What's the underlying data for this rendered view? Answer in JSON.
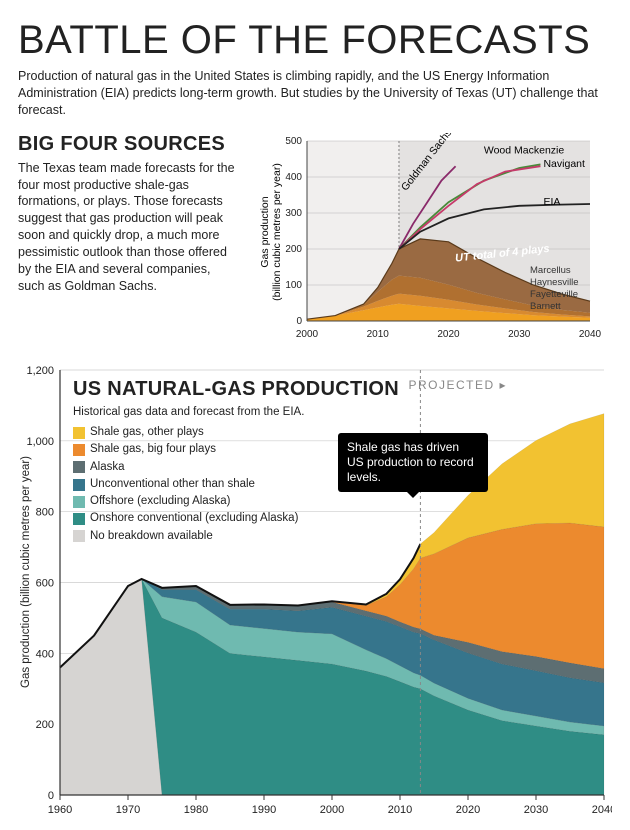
{
  "headline": "BATTLE OF THE FORECASTS",
  "intro": "Production of natural gas in the United States is climbing rapidly, and the US Energy Information Administration (EIA) predicts long-term growth. But studies by the University of Texas (UT) challenge that forecast.",
  "bigfour": {
    "title": "BIG FOUR SOURCES",
    "body": "The Texas team made forecasts for the four most productive shale-gas formations, or plays. Those forecasts suggest that gas production will peak soon and quickly drop, a much more pessimistic outlook than those offered by the EIA and several companies, such as Goldman Sachs."
  },
  "chart_small": {
    "type": "line+stacked-area",
    "ylabel": "Gas production\n(billion cubic metres per year)",
    "xlim": [
      2000,
      2040
    ],
    "ylim": [
      0,
      500
    ],
    "ytick_step": 100,
    "xtick_step": 10,
    "bg": "#f1efee",
    "proj_bg": "#e4e2e1",
    "grid_color": "#b8b6b5",
    "axis_color": "#444444",
    "divider_year": 2013,
    "lines": {
      "goldman": {
        "label": "Goldman Sachs",
        "color": "#8a2a6a",
        "pts": [
          [
            2013,
            200
          ],
          [
            2015,
            270
          ],
          [
            2017,
            330
          ],
          [
            2019,
            390
          ],
          [
            2021,
            430
          ]
        ]
      },
      "wood": {
        "label": "Wood Mackenzie",
        "color": "#4a8a3a",
        "pts": [
          [
            2013,
            200
          ],
          [
            2016,
            260
          ],
          [
            2020,
            330
          ],
          [
            2025,
            390
          ],
          [
            2030,
            425
          ],
          [
            2033,
            435
          ]
        ]
      },
      "navigant": {
        "label": "Navigant",
        "color": "#c63a6a",
        "pts": [
          [
            2013,
            200
          ],
          [
            2016,
            255
          ],
          [
            2020,
            320
          ],
          [
            2024,
            380
          ],
          [
            2028,
            415
          ],
          [
            2033,
            430
          ]
        ]
      },
      "eia": {
        "label": "EIA",
        "color": "#222222",
        "pts": [
          [
            2013,
            200
          ],
          [
            2016,
            248
          ],
          [
            2020,
            285
          ],
          [
            2025,
            310
          ],
          [
            2030,
            320
          ],
          [
            2035,
            323
          ],
          [
            2040,
            325
          ]
        ]
      }
    },
    "stack_label": "UT total of 4 plays",
    "stack_names": [
      "Marcellus",
      "Haynesville",
      "Fayetteville",
      "Barnett"
    ],
    "stack_colors": [
      "#9a6a42",
      "#b07030",
      "#d88a30",
      "#f0a020"
    ],
    "years": [
      2000,
      2004,
      2008,
      2010,
      2012,
      2013,
      2016,
      2020,
      2024,
      2028,
      2032,
      2036,
      2040
    ],
    "barnett": [
      5,
      15,
      30,
      38,
      45,
      48,
      42,
      35,
      28,
      22,
      16,
      12,
      9
    ],
    "fayetteville": [
      0,
      0,
      10,
      18,
      25,
      28,
      28,
      24,
      18,
      13,
      9,
      6,
      4
    ],
    "haynesville": [
      0,
      0,
      5,
      25,
      45,
      50,
      50,
      42,
      32,
      25,
      18,
      13,
      10
    ],
    "marcellus": [
      0,
      0,
      2,
      12,
      45,
      74,
      108,
      119,
      97,
      75,
      57,
      44,
      32
    ]
  },
  "chart_big": {
    "type": "stacked-area",
    "title": "US NATURAL-GAS PRODUCTION",
    "subtitle": "Historical gas data and forecast from the EIA.",
    "projected_label": "PROJECTED",
    "ylabel": "Gas production (billion cubic metres per year)",
    "xlim": [
      1960,
      2040
    ],
    "ylim": [
      0,
      1200
    ],
    "ytick_step": 200,
    "xtick_step": 10,
    "bg": "#ffffff",
    "grid_color": "#cccccc",
    "axis_color": "#333333",
    "divider_year": 2013,
    "callout": "Shale gas has driven US production to record levels.",
    "legend": [
      {
        "label": "Shale gas, other plays",
        "color": "#f2c231"
      },
      {
        "label": "Shale gas, big four plays",
        "color": "#ec8a2e"
      },
      {
        "label": "Alaska",
        "color": "#5d6e72"
      },
      {
        "label": "Unconventional other than shale",
        "color": "#36758c"
      },
      {
        "label": "Offshore (excluding Alaska)",
        "color": "#6fbab0"
      },
      {
        "label": "Onshore conventional (excluding Alaska)",
        "color": "#2f8d85"
      },
      {
        "label": "No breakdown available",
        "color": "#d6d4d2"
      }
    ],
    "years": [
      1960,
      1965,
      1970,
      1972,
      1975,
      1980,
      1985,
      1990,
      1995,
      2000,
      2005,
      2008,
      2010,
      2012,
      2013,
      2015,
      2020,
      2025,
      2030,
      2035,
      2040
    ],
    "no_data": [
      360,
      450,
      590,
      610,
      0,
      0,
      0,
      0,
      0,
      0,
      0,
      0,
      0,
      0,
      0,
      0,
      0,
      0,
      0,
      0,
      0
    ],
    "onshore": [
      0,
      0,
      0,
      0,
      500,
      460,
      400,
      390,
      380,
      370,
      350,
      335,
      320,
      305,
      300,
      280,
      240,
      210,
      195,
      180,
      170
    ],
    "offshore": [
      0,
      0,
      0,
      0,
      60,
      85,
      80,
      80,
      80,
      85,
      60,
      50,
      45,
      40,
      38,
      36,
      33,
      30,
      28,
      26,
      25
    ],
    "unconv": [
      0,
      0,
      0,
      0,
      20,
      35,
      45,
      55,
      60,
      75,
      95,
      105,
      110,
      115,
      118,
      122,
      128,
      130,
      128,
      125,
      122
    ],
    "alaska": [
      0,
      0,
      0,
      0,
      5,
      10,
      12,
      13,
      15,
      15,
      15,
      15,
      14,
      14,
      13,
      13,
      30,
      35,
      40,
      42,
      40
    ],
    "big4": [
      0,
      0,
      0,
      0,
      0,
      0,
      0,
      0,
      0,
      2,
      15,
      55,
      105,
      165,
      200,
      230,
      295,
      345,
      375,
      395,
      400
    ],
    "other_sh": [
      0,
      0,
      0,
      0,
      0,
      0,
      0,
      0,
      0,
      0,
      3,
      8,
      15,
      30,
      40,
      60,
      120,
      185,
      235,
      280,
      320
    ]
  }
}
